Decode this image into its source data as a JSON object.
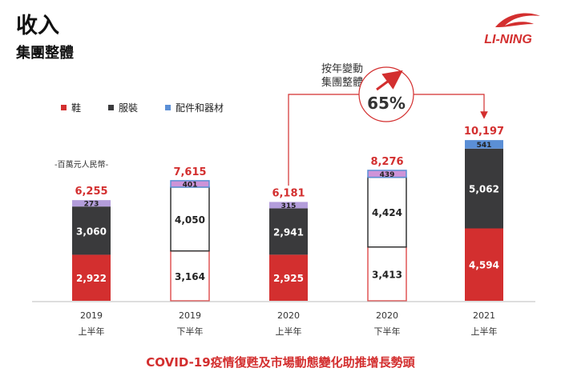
{
  "header": {
    "title": "收入",
    "subtitle": "集團整體",
    "brand": "LI-NING"
  },
  "legend": {
    "items": [
      {
        "label": "鞋",
        "color": "#d32f2f"
      },
      {
        "label": "服裝",
        "color": "#3a3a3c"
      },
      {
        "label": "配件和器材",
        "color": "#5b8fd6"
      }
    ]
  },
  "unit_note": "-百萬元人民幣-",
  "growth": {
    "label_line1": "按年變動",
    "label_line2": "集團整體",
    "value": "65%",
    "color": "#d32f2f"
  },
  "footer_note": "COVID-19疫情復甦及市場動態變化助推增長勢頭",
  "colors": {
    "footwear": "#d32f2f",
    "apparel": "#3a3a3c",
    "accessories_1h": "#b39ddb",
    "accessories_2h": "#ce93d8",
    "accessories_2021": "#5b8fd6",
    "total": "#d32f2f",
    "outline_footwear": "#e05555",
    "outline_apparel": "#333333",
    "outline_accessories": "#5b8fd6"
  },
  "chart_data": {
    "type": "bar",
    "stacked": true,
    "categories": [
      {
        "year": "2019",
        "half": "上半年",
        "style": "filled",
        "acc_color": "#b39ddb"
      },
      {
        "year": "2019",
        "half": "下半年",
        "style": "outline",
        "acc_color": "#ce93d8"
      },
      {
        "year": "2020",
        "half": "上半年",
        "style": "filled",
        "acc_color": "#b39ddb"
      },
      {
        "year": "2020",
        "half": "下半年",
        "style": "outline",
        "acc_color": "#ce93d8"
      },
      {
        "year": "2021",
        "half": "上半年",
        "style": "filled",
        "acc_color": "#5b8fd6"
      }
    ],
    "series": [
      {
        "name": "鞋",
        "values": [
          2922,
          3164,
          2925,
          3413,
          4594
        ],
        "labels": [
          "2,922",
          "3,164",
          "2,925",
          "3,413",
          "4,594"
        ]
      },
      {
        "name": "服裝",
        "values": [
          3060,
          4050,
          2941,
          4424,
          5062
        ],
        "labels": [
          "3,060",
          "4,050",
          "2,941",
          "4,424",
          "5,062"
        ]
      },
      {
        "name": "配件和器材",
        "values": [
          273,
          401,
          315,
          439,
          541
        ],
        "labels": [
          "273",
          "401",
          "315",
          "439",
          "541"
        ]
      }
    ],
    "totals": [
      6255,
      7615,
      6181,
      8276,
      10197
    ],
    "total_labels": [
      "6,255",
      "7,615",
      "6,181",
      "8,276",
      "10,197"
    ],
    "ylim": [
      0,
      10197
    ],
    "grid": false,
    "legend_position": "top-left"
  }
}
